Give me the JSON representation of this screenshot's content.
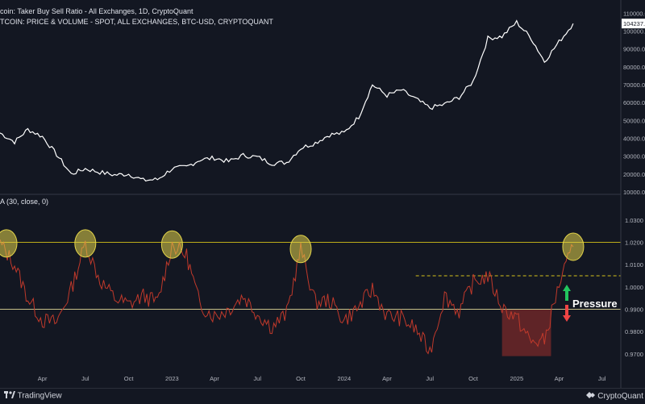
{
  "header": {
    "line1": "coin: Taker Buy Sell Ratio - All Exchanges, 1D, CryptoQuant",
    "line2": "TCOIN: PRICE & VOLUME - SPOT, ALL EXCHANGES, BTC-USD, CRYPTOQUANT"
  },
  "indicator_header": "A (30, close, 0)",
  "annotation": {
    "pressure_label": "Pressure",
    "up_color": "#22c55e",
    "down_color": "#ef4444"
  },
  "footer": {
    "left_brand": "TradingView",
    "right_brand": "CryptoQuant"
  },
  "colors": {
    "background": "#131722",
    "price_line": "#ffffff",
    "ratio_line": "#c0392b",
    "yellow_level": "#d4c21a",
    "highlight_circle": "#e3d44a",
    "highlight_box": "#7a2a2a"
  },
  "chart_data": [
    {
      "type": "line",
      "series": [
        {
          "name": "",
          "x": [
            "2022-01-01",
            "2022-02-01",
            "2022-03-01",
            "2022-04-01",
            "2022-05-01",
            "2022-06-01",
            "2022-07-01",
            "2022-08-01",
            "2022-09-01",
            "2022-10-01",
            "2022-11-01",
            "2022-12-01",
            "2023-01-01",
            "2023-02-01",
            "2023-03-01",
            "2023-04-01",
            "2023-05-01",
            "2023-06-01",
            "2023-07-01",
            "2023-08-01",
            "2023-09-01",
            "2023-10-01",
            "2023-11-01",
            "2023-12-01",
            "2024-01-01",
            "2024-02-01",
            "2024-03-01",
            "2024-04-01",
            "2024-05-01",
            "2024-06-01",
            "2024-07-01",
            "2024-08-01",
            "2024-09-01",
            "2024-10-01",
            "2024-11-01",
            "2024-12-01",
            "2025-01-01",
            "2025-02-01",
            "2025-03-01",
            "2025-04-01",
            "2025-05-01"
          ],
          "values": [
            43000,
            38000,
            45000,
            41000,
            31000,
            20000,
            23000,
            21000,
            19500,
            20000,
            16500,
            17000,
            23000,
            24000,
            28000,
            29000,
            27000,
            30500,
            29500,
            26000,
            26500,
            34500,
            37500,
            42000,
            43000,
            52000,
            70000,
            64000,
            67000,
            62000,
            57000,
            59000,
            63000,
            72000,
            96000,
            97000,
            105000,
            96000,
            83000,
            94000,
            104237
          ]
        }
      ],
      "ylim": [
        10000,
        112000
      ],
      "yticks": [
        "110000.0",
        "100000.0",
        "90000.0",
        "80000.0",
        "70000.0",
        "60000.0",
        "50000.0",
        "40000.0",
        "30000.0",
        "20000.0",
        "10000.0"
      ],
      "last_value_label": "104237."
    },
    {
      "type": "line",
      "series": [
        {
          "name": "",
          "x": [
            "2022-01-01",
            "2022-02-01",
            "2022-03-01",
            "2022-04-01",
            "2022-05-01",
            "2022-06-01",
            "2022-07-01",
            "2022-08-01",
            "2022-09-01",
            "2022-10-01",
            "2022-11-01",
            "2022-12-01",
            "2023-01-01",
            "2023-02-01",
            "2023-03-01",
            "2023-04-01",
            "2023-05-01",
            "2023-06-01",
            "2023-07-01",
            "2023-08-01",
            "2023-09-01",
            "2023-10-01",
            "2023-11-01",
            "2023-12-01",
            "2024-01-01",
            "2024-02-01",
            "2024-03-01",
            "2024-04-01",
            "2024-05-01",
            "2024-06-01",
            "2024-07-01",
            "2024-08-01",
            "2024-09-01",
            "2024-10-01",
            "2024-11-01",
            "2024-12-01",
            "2025-01-01",
            "2025-02-01",
            "2025-03-01",
            "2025-04-01",
            "2025-05-01"
          ],
          "values": [
            1.0195,
            1.01,
            0.995,
            0.985,
            0.984,
            0.999,
            1.0195,
            1.003,
            0.995,
            0.992,
            0.996,
            0.993,
            1.019,
            1.014,
            0.992,
            0.987,
            0.99,
            0.996,
            0.988,
            0.982,
            0.988,
            1.017,
            0.993,
            0.994,
            0.985,
            0.991,
            0.999,
            0.987,
            0.986,
            0.981,
            0.971,
            0.996,
            0.989,
            1.002,
            1.005,
            0.991,
            0.986,
            0.975,
            0.976,
            1.001,
            1.018
          ]
        }
      ],
      "ylim": [
        0.9685,
        1.031
      ],
      "yticks": [
        "1.0300",
        "1.0200",
        "1.0100",
        "1.0000",
        "0.9900",
        "0.9800",
        "0.9700"
      ],
      "reference_lines": [
        {
          "value": 1.02,
          "style": "solid"
        },
        {
          "value": 0.99,
          "style": "solid"
        },
        {
          "value": 1.005,
          "style": "dashed"
        }
      ],
      "highlighted_peaks": [
        "2022-01-01",
        "2022-07-01",
        "2023-01-01",
        "2023-10-01",
        "2025-05-01"
      ],
      "highlighted_range": {
        "x_start": "2024-12-01",
        "x_end": "2025-03-15",
        "y_start": 0.969,
        "y_end": 0.99
      }
    }
  ],
  "xaxis": {
    "labels": [
      "Apr",
      "Jul",
      "Oct",
      "2023",
      "Apr",
      "Jul",
      "Oct",
      "2024",
      "Apr",
      "Jul",
      "Oct",
      "2025",
      "Apr",
      "Jul"
    ],
    "dates": [
      "2022-04-01",
      "2022-07-01",
      "2022-10-01",
      "2023-01-01",
      "2023-04-01",
      "2023-07-01",
      "2023-10-01",
      "2024-01-01",
      "2024-04-01",
      "2024-07-01",
      "2024-10-01",
      "2025-01-01",
      "2025-04-01",
      "2025-07-01"
    ]
  }
}
